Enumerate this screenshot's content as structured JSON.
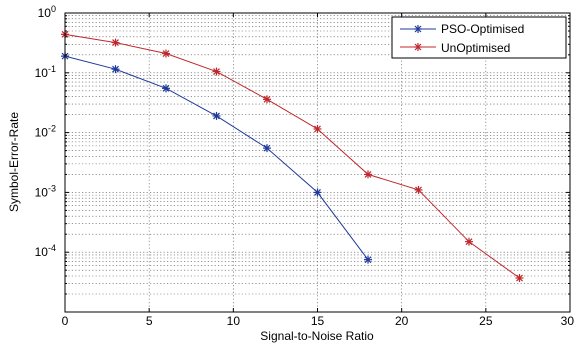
{
  "chart_data": {
    "type": "line",
    "xlabel": "Signal-to-Noise Ratio",
    "ylabel": "Symbol-Error-Rate",
    "xlim": [
      0,
      30
    ],
    "ylim": [
      1e-05,
      1
    ],
    "yscale": "log",
    "grid": true,
    "legend_position": "top-right",
    "x_ticks": [
      "0",
      "5",
      "10",
      "15",
      "20",
      "25",
      "30"
    ],
    "y_ticks": [
      {
        "base": "10",
        "exp": "0"
      },
      {
        "base": "10",
        "exp": "-1"
      },
      {
        "base": "10",
        "exp": "-2"
      },
      {
        "base": "10",
        "exp": "-3"
      },
      {
        "base": "10",
        "exp": "-4"
      }
    ],
    "series": [
      {
        "name": "PSO-Optimised",
        "color": "#1f3a9c",
        "marker": "asterisk",
        "x": [
          0,
          3,
          6,
          9,
          12,
          15,
          18
        ],
        "y": [
          0.19,
          0.115,
          0.055,
          0.019,
          0.0055,
          0.001,
          7.5e-05
        ]
      },
      {
        "name": "UnOptimised",
        "color": "#c0282d",
        "marker": "asterisk",
        "x": [
          0,
          3,
          6,
          9,
          12,
          15,
          18,
          21,
          24,
          27
        ],
        "y": [
          0.44,
          0.32,
          0.21,
          0.105,
          0.036,
          0.0115,
          0.002,
          0.0011,
          0.00015,
          3.7e-05
        ]
      }
    ]
  }
}
